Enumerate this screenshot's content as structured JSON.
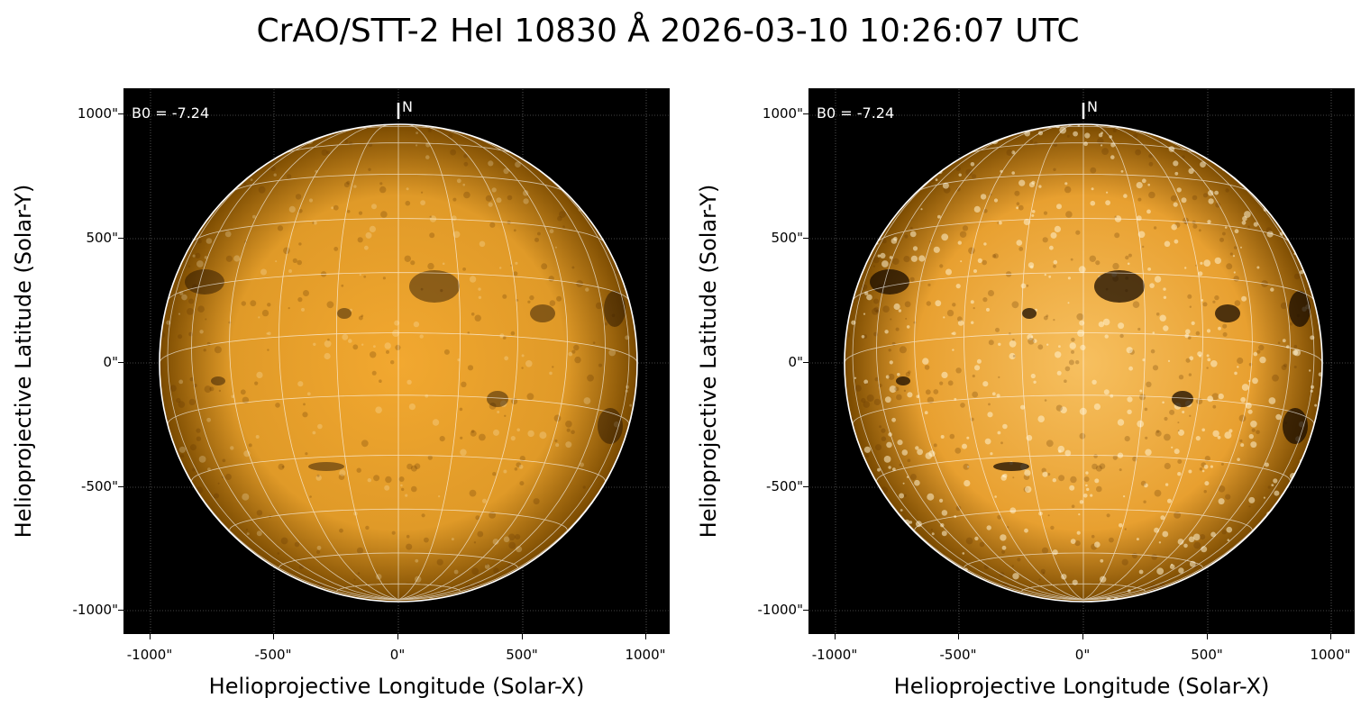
{
  "title": "CrAO/STT-2 HeI 10830 Å 2026-03-10 10:26:07 UTC",
  "colors": {
    "disk_core": "#f2a830",
    "disk_edge": "#7a4a00",
    "background": "#000000",
    "grid": "#ffffff"
  },
  "panels": [
    {
      "b0_label": "B0 = -7.24",
      "north_label": "N",
      "xlabel": "Helioprojective Longitude (Solar-X)",
      "ylabel": "Helioprojective Latitude (Solar-Y)",
      "xticks": [
        "-1000\"",
        "-500\"",
        "0\"",
        "500\"",
        "1000\""
      ],
      "yticks": [
        "1000\"",
        "500\"",
        "0\"",
        "-500\"",
        "-1000\""
      ],
      "contrast": "normal"
    },
    {
      "b0_label": "B0 = -7.24",
      "north_label": "N",
      "xlabel": "Helioprojective Longitude (Solar-X)",
      "ylabel": "Helioprojective Latitude (Solar-Y)",
      "xticks": [
        "-1000\"",
        "-500\"",
        "0\"",
        "500\"",
        "1000\""
      ],
      "yticks": [
        "1000\"",
        "500\"",
        "0\"",
        "-500\"",
        "-1000\""
      ],
      "contrast": "enhanced"
    }
  ]
}
